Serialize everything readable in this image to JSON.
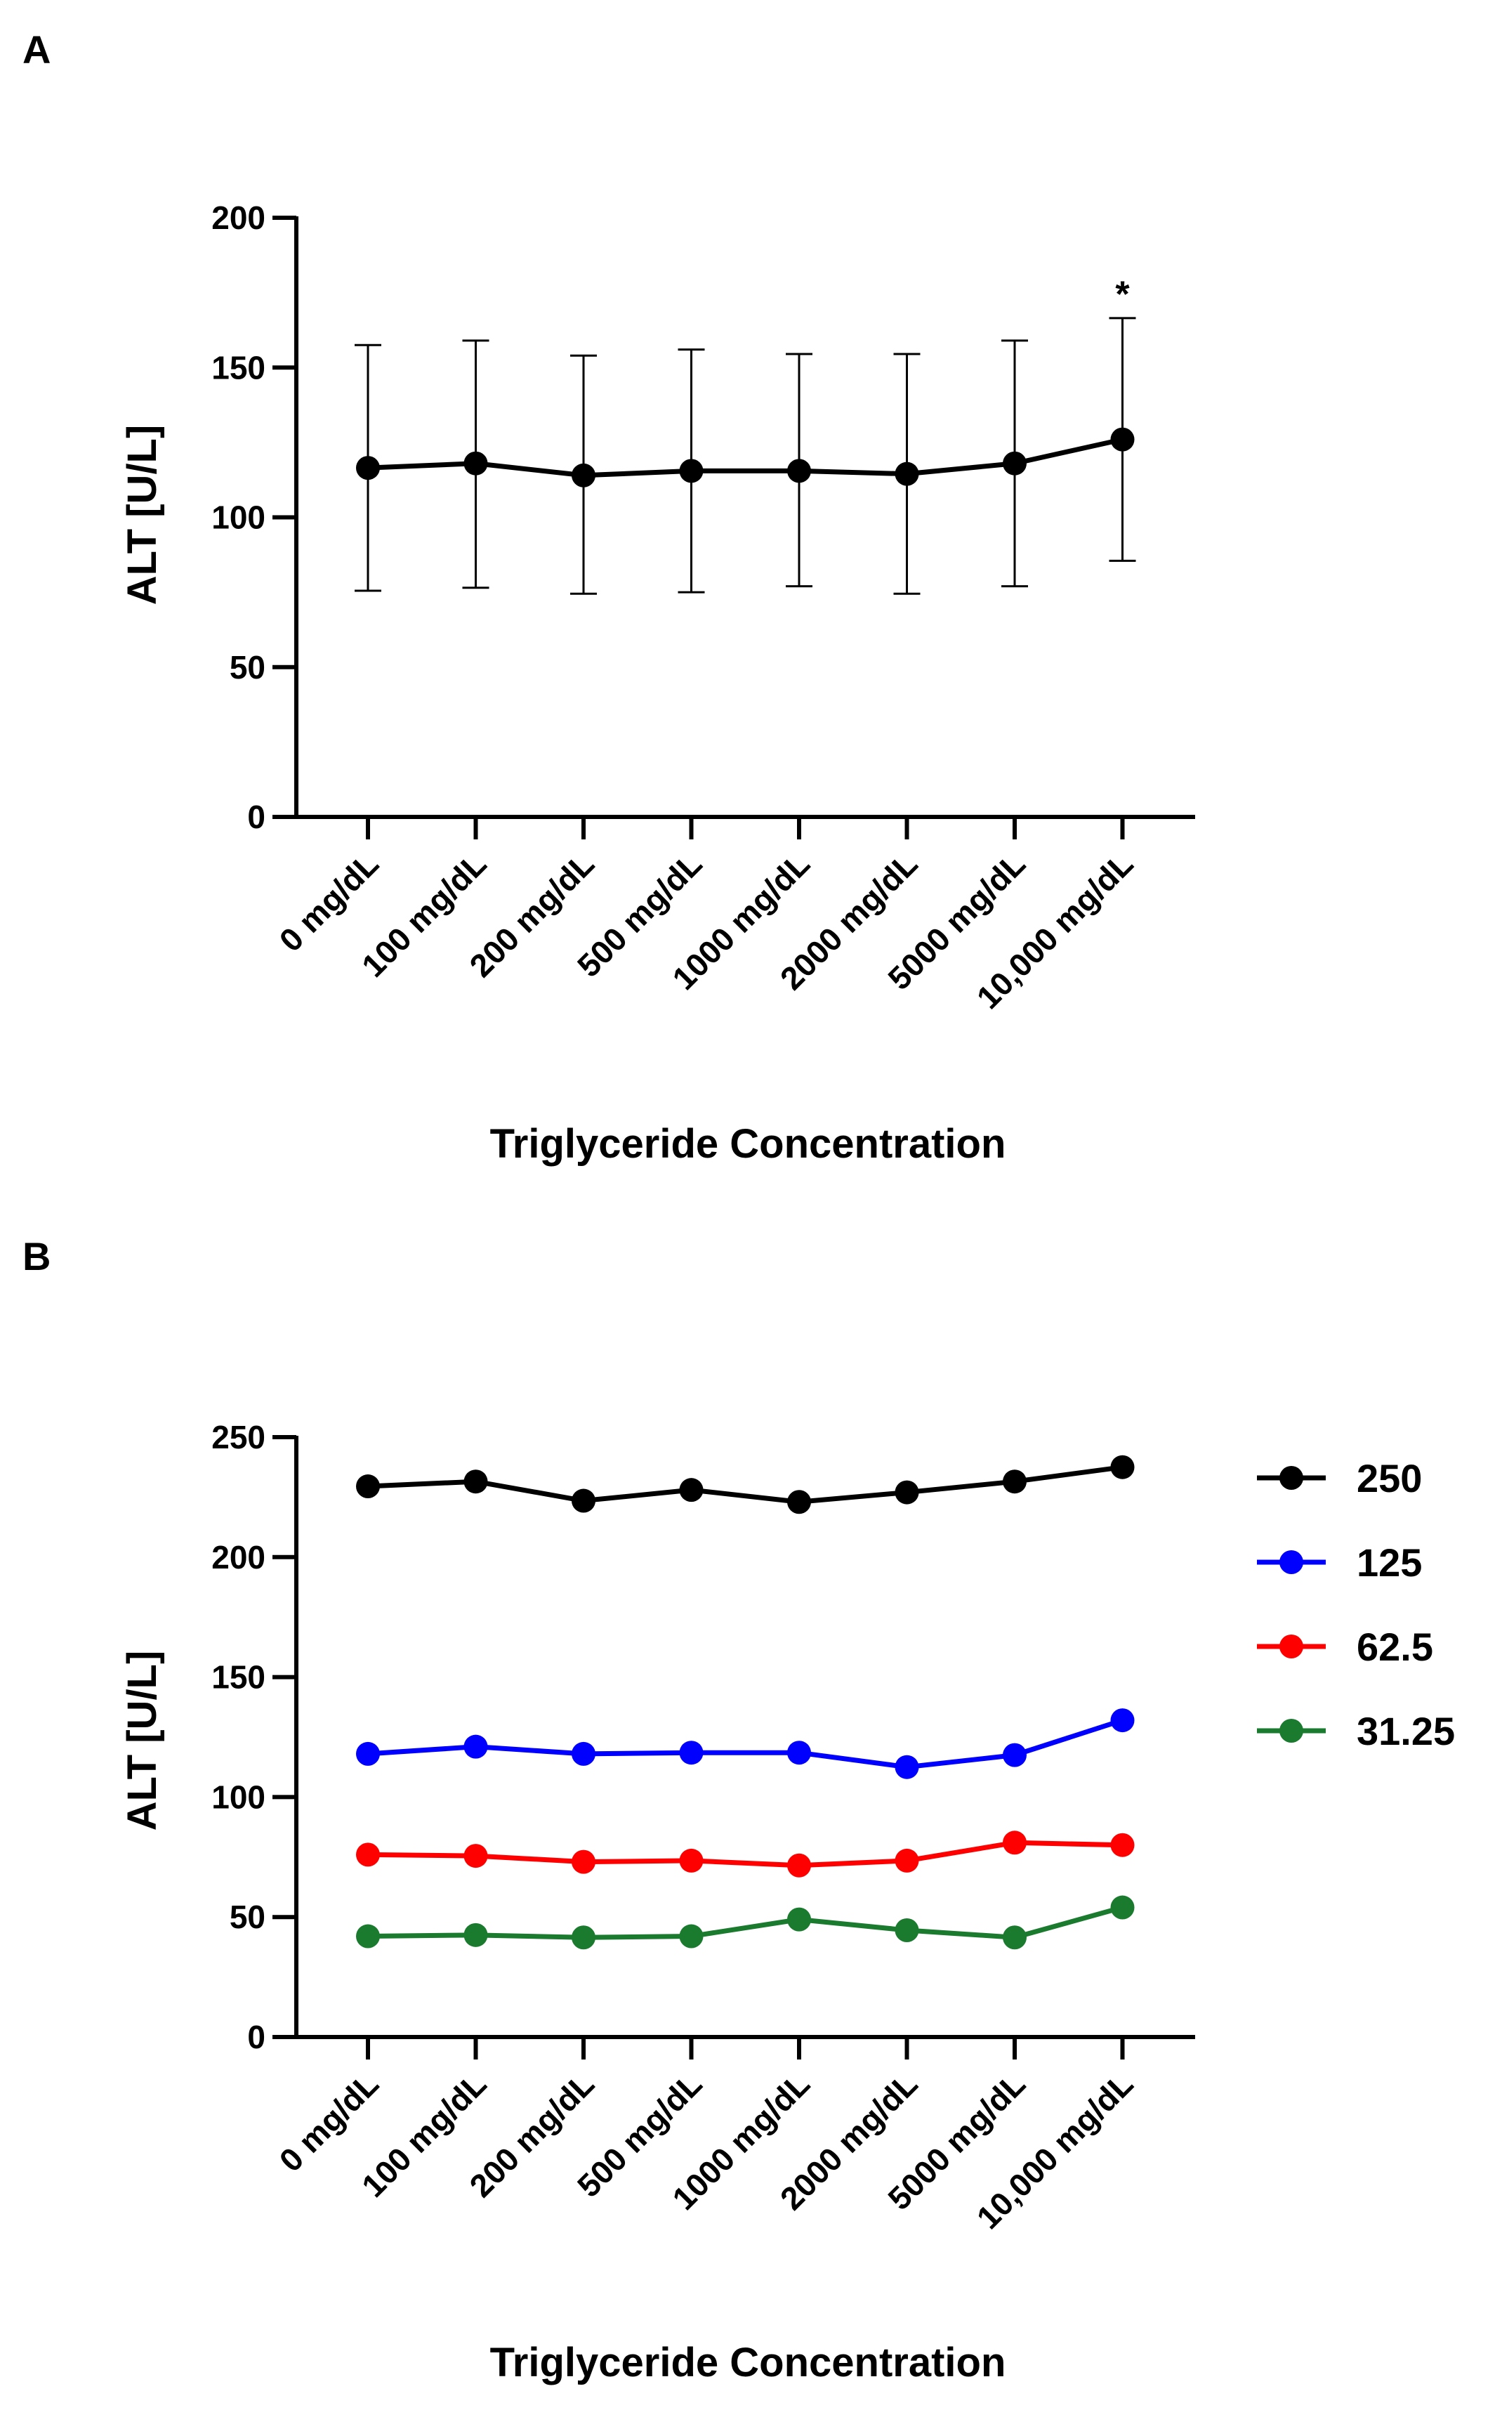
{
  "chart_data": [
    {
      "panel": "A",
      "type": "line",
      "title": "",
      "xlabel": "Triglyceride Concentration",
      "ylabel": "ALT [U/L]",
      "ylim": [
        0,
        200
      ],
      "yticks": [
        0,
        50,
        100,
        150,
        200
      ],
      "categories": [
        "0 mg/dL",
        "100 mg/dL",
        "200 mg/dL",
        "500 mg/dL",
        "1000 mg/dL",
        "2000 mg/dL",
        "5000 mg/dL",
        "10,000 mg/dL"
      ],
      "series": [
        {
          "color": "#000000",
          "values": [
            116.5,
            118,
            114,
            115.5,
            115.5,
            114.5,
            118,
            126
          ],
          "error_low": [
            75.5,
            76.5,
            74.5,
            75,
            77,
            74.5,
            77,
            85.5
          ],
          "error_high": [
            157.5,
            159,
            154,
            156,
            154.5,
            154.5,
            159,
            166.5
          ]
        }
      ],
      "annotations": [
        {
          "text": "*",
          "category": "10,000 mg/dL",
          "y": 176
        }
      ],
      "grid": false,
      "legend": "none"
    },
    {
      "panel": "B",
      "type": "line",
      "title": "",
      "xlabel": "Triglyceride Concentration",
      "ylabel": "ALT [U/L]",
      "ylim": [
        0,
        250
      ],
      "yticks": [
        0,
        50,
        100,
        150,
        200,
        250
      ],
      "categories": [
        "0 mg/dL",
        "100 mg/dL",
        "200 mg/dL",
        "500 mg/dL",
        "1000 mg/dL",
        "2000 mg/dL",
        "5000 mg/dL",
        "10,000 mg/dL"
      ],
      "series": [
        {
          "name": "250",
          "color": "#000000",
          "values": [
            229.5,
            231.5,
            223.5,
            228,
            223,
            227,
            231.5,
            237.5
          ]
        },
        {
          "name": "125",
          "color": "#0000ff",
          "values": [
            118,
            121,
            118,
            118.5,
            118.5,
            112.5,
            117.5,
            132
          ]
        },
        {
          "name": "62.5",
          "color": "#ff0000",
          "values": [
            76,
            75.5,
            73,
            73.5,
            71.5,
            73.5,
            81,
            80
          ]
        },
        {
          "name": "31.25",
          "color": "#1a7a2e",
          "values": [
            42,
            42.5,
            41.5,
            42,
            49,
            44.5,
            41.5,
            54
          ]
        }
      ],
      "grid": false,
      "legend": "right"
    }
  ]
}
